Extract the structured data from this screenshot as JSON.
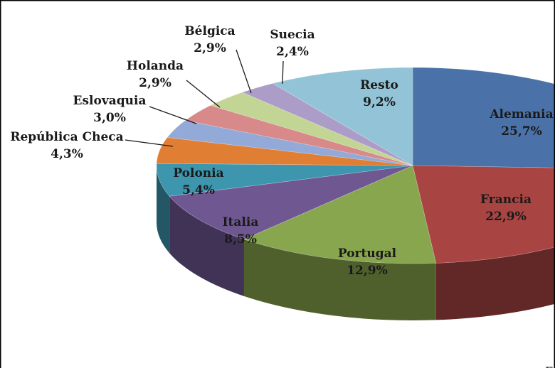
{
  "chart_data": {
    "type": "pie",
    "title": "",
    "style": "3d-exploded-view-cropped",
    "series": [
      {
        "name": "Alemania",
        "value": 25.7,
        "label": "25,7%",
        "color": "#4A72A8"
      },
      {
        "name": "Francia",
        "value": 22.9,
        "label": "22,9%",
        "color": "#A84543"
      },
      {
        "name": "Portugal",
        "value": 12.9,
        "label": "12,9%",
        "color": "#88A64E"
      },
      {
        "name": "Italia",
        "value": 8.5,
        "label": "8,5%",
        "color": "#6F5892"
      },
      {
        "name": "Polonia",
        "value": 5.4,
        "label": "5,4%",
        "color": "#3D96AE"
      },
      {
        "name": "República Checa",
        "value": 4.3,
        "label": "4,3%",
        "color": "#E07E33"
      },
      {
        "name": "Eslovaquia",
        "value": 3.0,
        "label": "3,0%",
        "color": "#93A9D7"
      },
      {
        "name": "Holanda",
        "value": 2.9,
        "label": "2,9%",
        "color": "#D8898A"
      },
      {
        "name": "Bélgica",
        "value": 2.9,
        "label": "2,9%",
        "color": "#C3D594"
      },
      {
        "name": "Suecia",
        "value": 2.4,
        "label": "2,4%",
        "color": "#AC9DC8"
      },
      {
        "name": "Resto",
        "value": 9.2,
        "label": "9,2%",
        "color": "#93C3D6"
      }
    ],
    "legend": "none",
    "corner_text": "F"
  }
}
